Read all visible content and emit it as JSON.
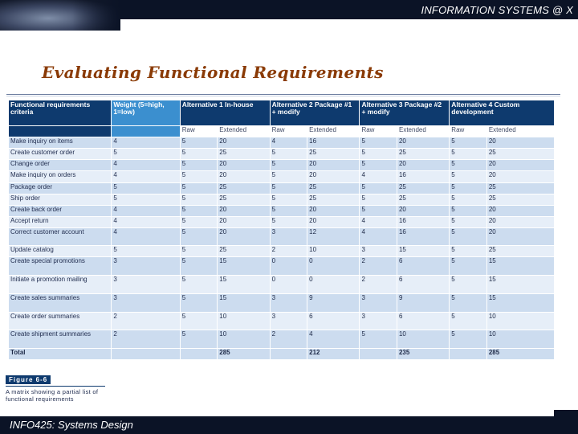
{
  "header": {
    "title": "INFORMATION SYSTEMS @ X"
  },
  "slide": {
    "title": "Evaluating Functional Requirements"
  },
  "matrix": {
    "headers": {
      "criteria": "Functional requirements criteria",
      "weight": "Weight (5=high, 1=low)",
      "alt1": "Alternative 1 In-house",
      "alt2": "Alternative 2 Package #1 + modify",
      "alt3": "Alternative 3 Package #2 + modify",
      "alt4": "Alternative 4 Custom development"
    },
    "subheaders": {
      "raw": "Raw",
      "extended": "Extended"
    },
    "rows": [
      {
        "criteria": "Make inquiry on items",
        "weight": "4",
        "a1r": "5",
        "a1e": "20",
        "a2r": "4",
        "a2e": "16",
        "a3r": "5",
        "a3e": "20",
        "a4r": "5",
        "a4e": "20"
      },
      {
        "criteria": "Create customer order",
        "weight": "5",
        "a1r": "5",
        "a1e": "25",
        "a2r": "5",
        "a2e": "25",
        "a3r": "5",
        "a3e": "25",
        "a4r": "5",
        "a4e": "25"
      },
      {
        "criteria": "Change order",
        "weight": "4",
        "a1r": "5",
        "a1e": "20",
        "a2r": "5",
        "a2e": "20",
        "a3r": "5",
        "a3e": "20",
        "a4r": "5",
        "a4e": "20"
      },
      {
        "criteria": "Make inquiry on orders",
        "weight": "4",
        "a1r": "5",
        "a1e": "20",
        "a2r": "5",
        "a2e": "20",
        "a3r": "4",
        "a3e": "16",
        "a4r": "5",
        "a4e": "20"
      },
      {
        "criteria": "Package order",
        "weight": "5",
        "a1r": "5",
        "a1e": "25",
        "a2r": "5",
        "a2e": "25",
        "a3r": "5",
        "a3e": "25",
        "a4r": "5",
        "a4e": "25"
      },
      {
        "criteria": "Ship order",
        "weight": "5",
        "a1r": "5",
        "a1e": "25",
        "a2r": "5",
        "a2e": "25",
        "a3r": "5",
        "a3e": "25",
        "a4r": "5",
        "a4e": "25"
      },
      {
        "criteria": "Create back order",
        "weight": "4",
        "a1r": "5",
        "a1e": "20",
        "a2r": "5",
        "a2e": "20",
        "a3r": "5",
        "a3e": "20",
        "a4r": "5",
        "a4e": "20"
      },
      {
        "criteria": "Accept return",
        "weight": "4",
        "a1r": "5",
        "a1e": "20",
        "a2r": "5",
        "a2e": "20",
        "a3r": "4",
        "a3e": "16",
        "a4r": "5",
        "a4e": "20"
      },
      {
        "criteria": "Correct customer account",
        "weight": "4",
        "a1r": "5",
        "a1e": "20",
        "a2r": "3",
        "a2e": "12",
        "a3r": "4",
        "a3e": "16",
        "a4r": "5",
        "a4e": "20"
      },
      {
        "criteria": "Update catalog",
        "weight": "5",
        "a1r": "5",
        "a1e": "25",
        "a2r": "2",
        "a2e": "10",
        "a3r": "3",
        "a3e": "15",
        "a4r": "5",
        "a4e": "25"
      },
      {
        "criteria": "Create special promotions",
        "weight": "3",
        "a1r": "5",
        "a1e": "15",
        "a2r": "0",
        "a2e": "0",
        "a3r": "2",
        "a3e": "6",
        "a4r": "5",
        "a4e": "15"
      },
      {
        "criteria": "Initiate a promotion mailing",
        "weight": "3",
        "a1r": "5",
        "a1e": "15",
        "a2r": "0",
        "a2e": "0",
        "a3r": "2",
        "a3e": "6",
        "a4r": "5",
        "a4e": "15"
      },
      {
        "criteria": "Create sales summaries",
        "weight": "3",
        "a1r": "5",
        "a1e": "15",
        "a2r": "3",
        "a2e": "9",
        "a3r": "3",
        "a3e": "9",
        "a4r": "5",
        "a4e": "15"
      },
      {
        "criteria": "Create order summaries",
        "weight": "2",
        "a1r": "5",
        "a1e": "10",
        "a2r": "3",
        "a2e": "6",
        "a3r": "3",
        "a3e": "6",
        "a4r": "5",
        "a4e": "10"
      },
      {
        "criteria": "Create shipment summaries",
        "weight": "2",
        "a1r": "5",
        "a1e": "10",
        "a2r": "2",
        "a2e": "4",
        "a3r": "5",
        "a3e": "10",
        "a4r": "5",
        "a4e": "10"
      }
    ],
    "total": {
      "label": "Total",
      "a1": "285",
      "a2": "212",
      "a3": "235",
      "a4": "285"
    }
  },
  "figure": {
    "label": "Figure 6-6",
    "caption": "A matrix showing a partial list of functional requirements"
  },
  "footer": {
    "title": "INFO425: Systems Design"
  },
  "colors": {
    "header_dark": "#0e3a6e",
    "header_weight": "#3b8fcf",
    "row_a": "#ccdcef",
    "row_b": "#e6eef8",
    "title": "#8a3a05",
    "bar": "#0b1326"
  }
}
